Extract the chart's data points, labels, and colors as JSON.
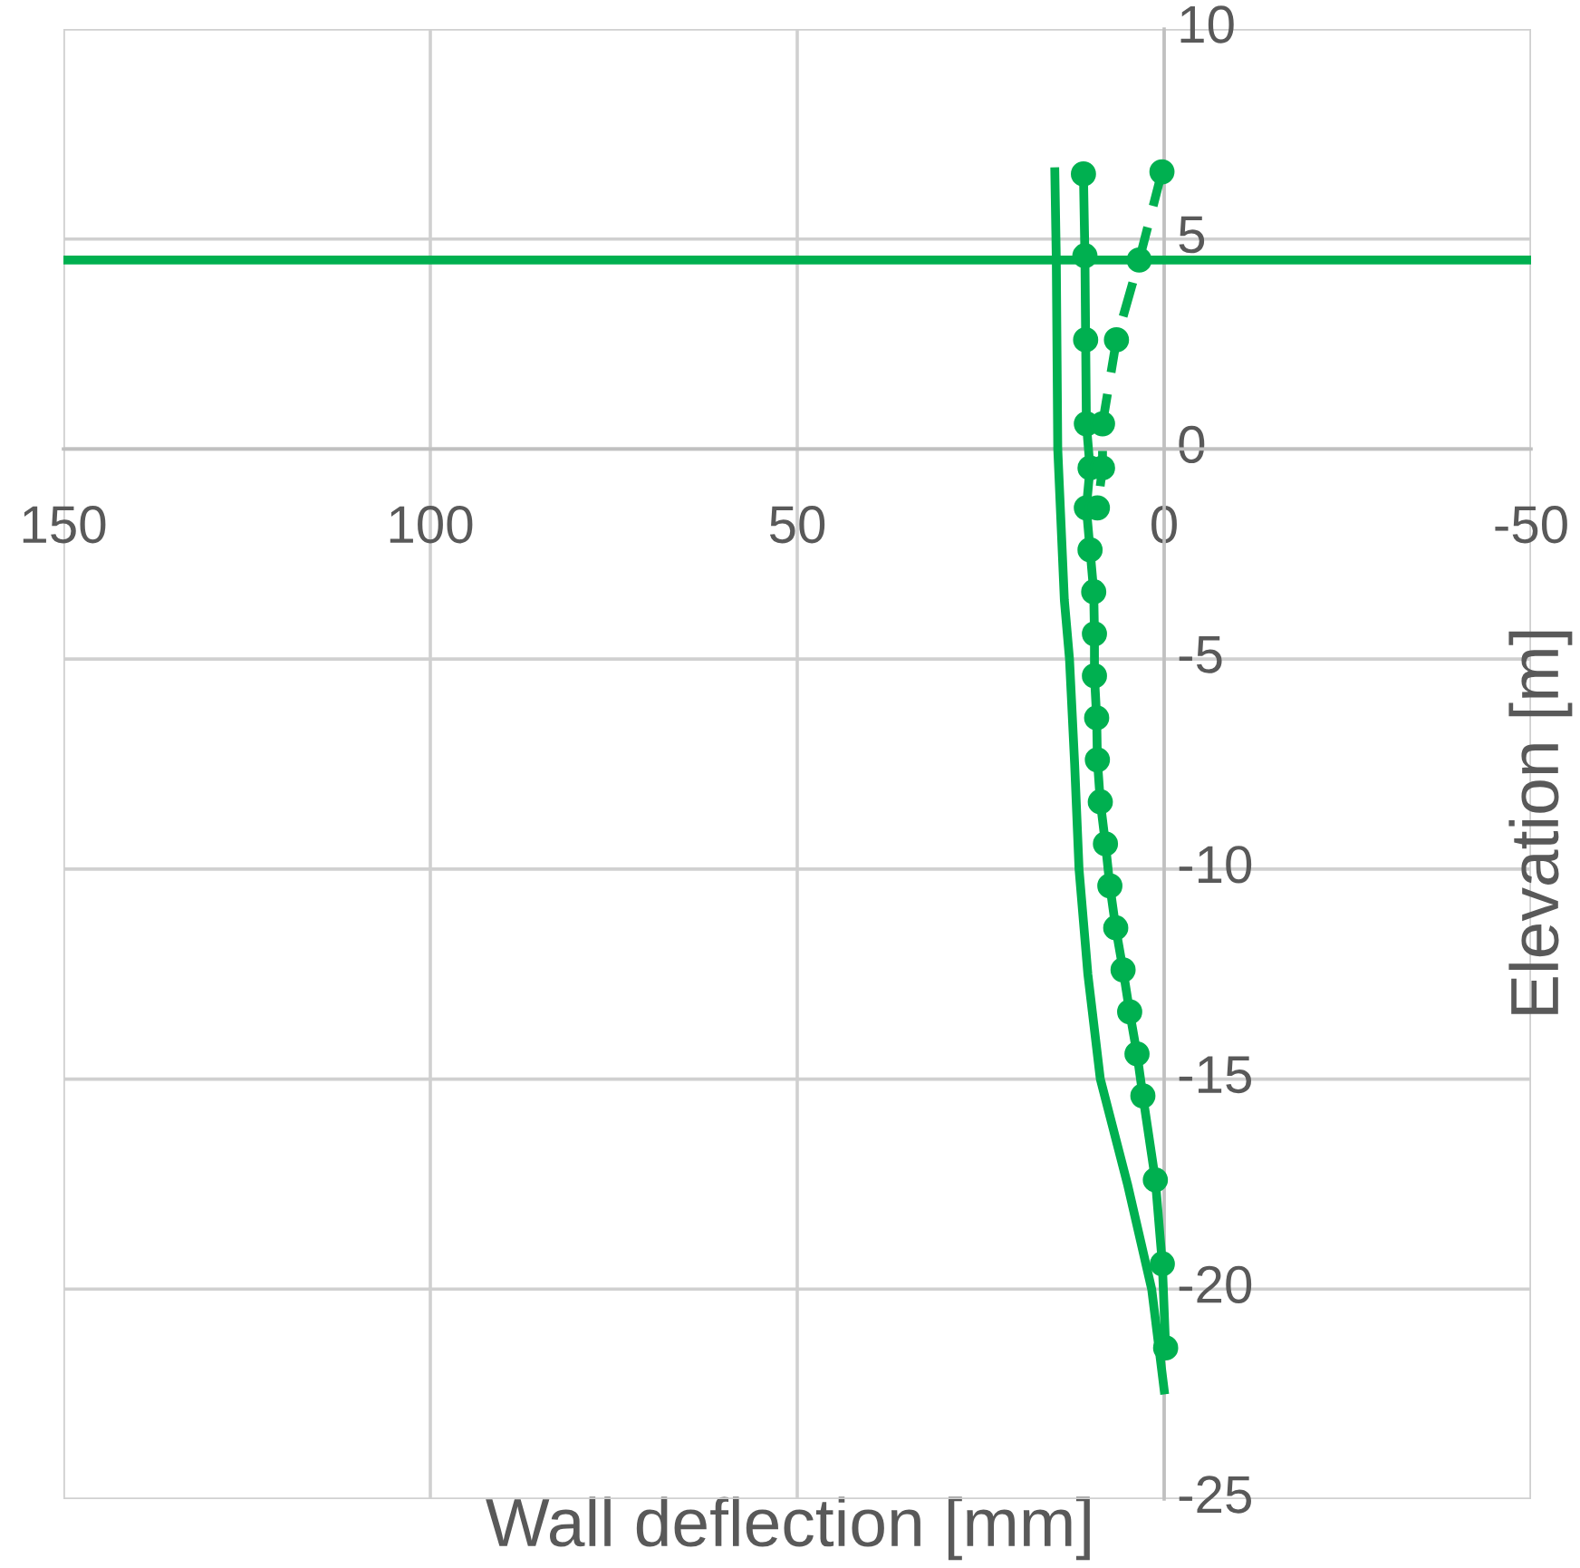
{
  "chart_data": {
    "type": "line",
    "xlabel": "Wall deflection [mm]",
    "ylabel": "Elevation [m]",
    "xlim": [
      150,
      -50
    ],
    "xticks": [
      150,
      100,
      50,
      0,
      -50
    ],
    "ylim": [
      -25,
      10
    ],
    "yticks": [
      -25,
      -20,
      -15,
      -10,
      -5,
      0,
      5,
      10
    ],
    "grid": true,
    "series": [
      {
        "color": "#00b050",
        "marker": "none",
        "line_style": "solid",
        "x": [
          14.9,
          14.7,
          14.5,
          13.6,
          12.9,
          12.2,
          11.6,
          10.4,
          8.7,
          5.0,
          1.7,
          0.0
        ],
        "values": [
          6.6,
          4.5,
          0,
          -3.6,
          -5,
          -7.5,
          -10,
          -12.5,
          -15,
          -17.5,
          -20,
          -22.4
        ]
      },
      {
        "color": "#00b050",
        "marker": "circle",
        "line_style": "solid",
        "x": [
          11.0,
          10.8,
          10.7,
          10.6,
          10.1,
          10.6,
          10.1,
          9.6,
          9.5,
          9.5,
          9.2,
          9.1,
          8.7,
          8.0,
          7.4,
          6.6,
          5.6,
          4.7,
          3.7,
          2.9,
          1.2,
          0.25,
          -0.2
        ],
        "values": [
          6.55,
          4.6,
          2.6,
          0.6,
          -0.45,
          -1.4,
          -2.4,
          -3.4,
          -4.4,
          -5.4,
          -6.4,
          -7.4,
          -8.4,
          -9.4,
          -10.4,
          -11.4,
          -12.4,
          -13.4,
          -14.4,
          -15.4,
          -17.4,
          -19.4,
          -21.4
        ]
      },
      {
        "color": "#00b050",
        "marker": "circle",
        "line_style": "dashed",
        "x": [
          0.3,
          3.4,
          6.5,
          8.4,
          8.4,
          9.1
        ],
        "values": [
          6.6,
          4.5,
          2.6,
          0.6,
          -0.45,
          -1.4
        ]
      }
    ],
    "ref_lines": [
      {
        "axis": "y",
        "value": 4.5,
        "color": "#00b050",
        "line_style": "solid"
      }
    ]
  }
}
